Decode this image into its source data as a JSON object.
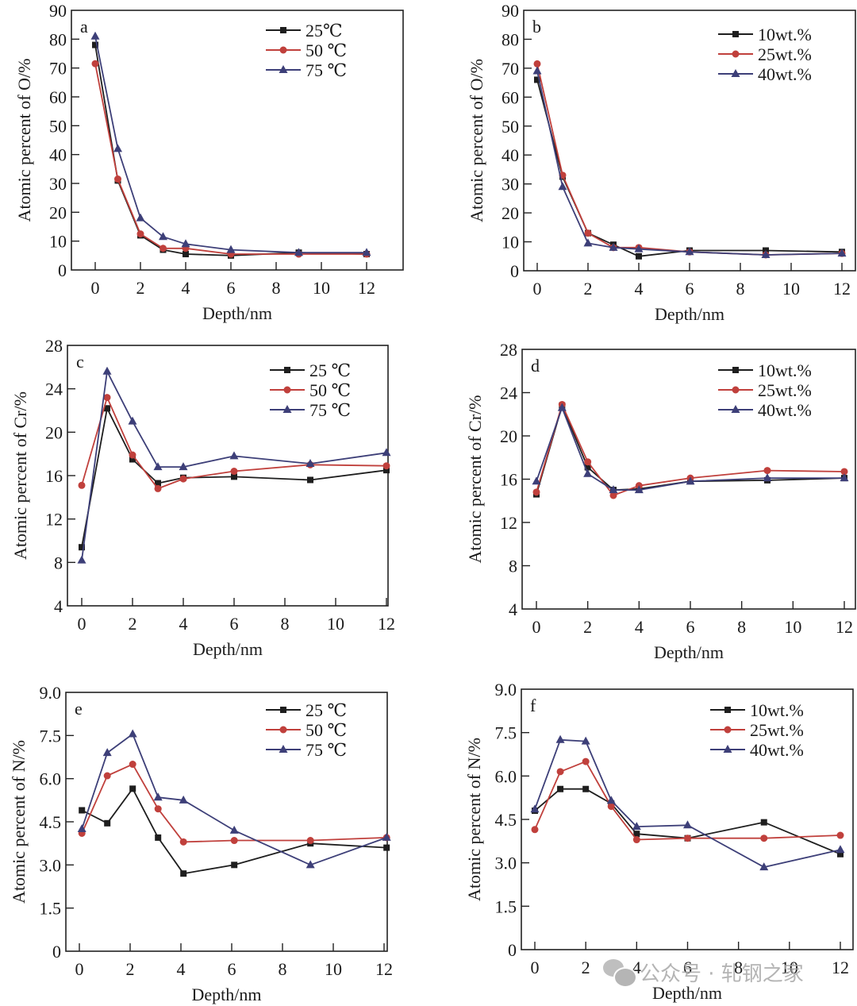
{
  "figure": {
    "watermark": "公众号 · 轧钢之家",
    "watermark_icon": "wechat-icon"
  },
  "colors": {
    "series1": "#1e1e1e",
    "series2": "#c0403c",
    "series3": "#3d3f78",
    "axis": "#222222"
  },
  "chart_data": [
    {
      "panel": "a",
      "type": "line",
      "xlabel": "Depth/nm",
      "ylabel": "Atomic percent of O/%",
      "xlim": [
        -1,
        13
      ],
      "ylim": [
        0,
        90
      ],
      "xticks": [
        0,
        2,
        4,
        6,
        8,
        10,
        12
      ],
      "yticks": [
        "0",
        "10",
        "20",
        "30",
        "40",
        "50",
        "60",
        "70",
        "80",
        "90"
      ],
      "yticks_values": [
        0,
        10,
        20,
        30,
        40,
        50,
        60,
        70,
        80,
        90
      ],
      "legend_position": "top-right",
      "x": [
        0,
        1,
        2,
        3,
        4,
        6,
        9,
        12
      ],
      "series": [
        {
          "name": "25℃",
          "marker": "square",
          "values": [
            78,
            31,
            12,
            7,
            5.5,
            5,
            6,
            5.5
          ]
        },
        {
          "name": "50 ℃",
          "marker": "circle",
          "values": [
            71.5,
            31.5,
            12.5,
            7.5,
            7.5,
            5.5,
            5.5,
            5.5
          ]
        },
        {
          "name": "75 ℃",
          "marker": "triangle",
          "values": [
            81,
            42,
            18,
            11.5,
            9,
            7,
            6,
            6
          ]
        }
      ]
    },
    {
      "panel": "b",
      "type": "line",
      "xlabel": "Depth/nm",
      "ylabel": "Atomic percent of O/%",
      "xlim": [
        -0.5,
        13
      ],
      "ylim": [
        0,
        90
      ],
      "xticks": [
        0,
        2,
        4,
        6,
        8,
        10,
        12
      ],
      "yticks": [
        "0",
        "10",
        "20",
        "30",
        "40",
        "50",
        "60",
        "70",
        "80",
        "90"
      ],
      "yticks_values": [
        0,
        10,
        20,
        30,
        40,
        50,
        60,
        70,
        80,
        90
      ],
      "legend_position": "top-right",
      "x": [
        0,
        1,
        2,
        3,
        4,
        6,
        9,
        12
      ],
      "series": [
        {
          "name": "10wt.%",
          "marker": "square",
          "values": [
            66,
            32.5,
            13,
            9,
            5,
            7,
            7,
            6.5
          ]
        },
        {
          "name": "25wt.%",
          "marker": "circle",
          "values": [
            71.5,
            33,
            13,
            8,
            8,
            6.5,
            5.5,
            6
          ]
        },
        {
          "name": "40wt.%",
          "marker": "triangle",
          "values": [
            69,
            29,
            9.5,
            8,
            7.5,
            6.5,
            5.5,
            6
          ]
        }
      ]
    },
    {
      "panel": "c",
      "type": "line",
      "xlabel": "Depth/nm",
      "ylabel": "Atomic percent of Cr/%",
      "xlim": [
        -0.5,
        13
      ],
      "ylim": [
        4,
        28
      ],
      "xticks": [
        0,
        2,
        4,
        6,
        8,
        10,
        12
      ],
      "yticks": [
        "4",
        "8",
        "12",
        "16",
        "20",
        "24",
        "28"
      ],
      "yticks_values": [
        4,
        8,
        12,
        16,
        20,
        24,
        28
      ],
      "legend_position": "top-right",
      "x": [
        0,
        1,
        2,
        3,
        4,
        6,
        9,
        12
      ],
      "series": [
        {
          "name": "25 ℃",
          "marker": "square",
          "values": [
            9.4,
            22.2,
            17.5,
            15.3,
            15.8,
            15.9,
            15.6,
            16.5
          ]
        },
        {
          "name": "50 ℃",
          "marker": "circle",
          "values": [
            15.1,
            23.2,
            17.9,
            14.8,
            15.7,
            16.4,
            17.0,
            16.9
          ]
        },
        {
          "name": "75 ℃",
          "marker": "triangle",
          "values": [
            8.2,
            25.6,
            21.0,
            16.8,
            16.8,
            17.8,
            17.1,
            18.1
          ]
        }
      ]
    },
    {
      "panel": "d",
      "type": "line",
      "xlabel": "Depth/nm",
      "ylabel": "Atomic percent of Cr/%",
      "xlim": [
        -0.5,
        13
      ],
      "ylim": [
        4,
        28
      ],
      "xticks": [
        0,
        2,
        4,
        6,
        8,
        10,
        12
      ],
      "yticks": [
        "4",
        "8",
        "12",
        "16",
        "20",
        "24",
        "28"
      ],
      "yticks_values": [
        4,
        8,
        12,
        16,
        20,
        24,
        28
      ],
      "legend_position": "top-right",
      "x": [
        0,
        1,
        2,
        3,
        4,
        6,
        9,
        12
      ],
      "series": [
        {
          "name": "10wt.%",
          "marker": "square",
          "values": [
            14.6,
            22.8,
            17.1,
            15.0,
            15.1,
            15.8,
            15.9,
            16.1
          ]
        },
        {
          "name": "25wt.%",
          "marker": "circle",
          "values": [
            14.8,
            22.9,
            17.6,
            14.5,
            15.4,
            16.1,
            16.8,
            16.7
          ]
        },
        {
          "name": "40wt.%",
          "marker": "triangle",
          "values": [
            15.8,
            22.6,
            16.5,
            15.0,
            15.0,
            15.8,
            16.1,
            16.1
          ]
        }
      ]
    },
    {
      "panel": "e",
      "type": "line",
      "xlabel": "Depth/nm",
      "ylabel": "Atomic percent of N/%",
      "xlim": [
        -0.5,
        13
      ],
      "ylim": [
        0,
        9
      ],
      "xticks": [
        0,
        2,
        4,
        6,
        8,
        10,
        12
      ],
      "yticks": [
        "0",
        "1.5",
        "3.0",
        "4.5",
        "6.0",
        "7.5",
        "9.0"
      ],
      "yticks_values": [
        0,
        1.5,
        3.0,
        4.5,
        6.0,
        7.5,
        9.0
      ],
      "legend_position": "top-right",
      "x": [
        0.1,
        1.1,
        2.1,
        3.1,
        4.1,
        6.1,
        9.1,
        12.1
      ],
      "series": [
        {
          "name": "25 ℃",
          "marker": "square",
          "values": [
            4.9,
            4.45,
            5.65,
            3.95,
            2.7,
            3.0,
            3.75,
            3.6
          ]
        },
        {
          "name": "50 ℃",
          "marker": "circle",
          "values": [
            4.1,
            6.1,
            6.5,
            4.95,
            3.8,
            3.85,
            3.85,
            3.95
          ]
        },
        {
          "name": "75 ℃",
          "marker": "triangle",
          "values": [
            4.25,
            6.9,
            7.55,
            5.35,
            5.25,
            4.2,
            3.0,
            3.95
          ]
        }
      ]
    },
    {
      "panel": "f",
      "type": "line",
      "xlabel": "Depth/nm",
      "ylabel": "Atomic percent of N/%",
      "xlim": [
        -0.5,
        13
      ],
      "ylim": [
        0,
        9
      ],
      "xticks": [
        0,
        2,
        4,
        6,
        8,
        10,
        12
      ],
      "yticks": [
        "0",
        "1.5",
        "3.0",
        "4.5",
        "6.0",
        "7.5",
        "9.0"
      ],
      "yticks_values": [
        0,
        1.5,
        3.0,
        4.5,
        6.0,
        7.5,
        9.0
      ],
      "legend_position": "top-right",
      "x": [
        0,
        1,
        2,
        3,
        4,
        6,
        9,
        12
      ],
      "series": [
        {
          "name": "10wt.%",
          "marker": "square",
          "values": [
            4.8,
            5.55,
            5.55,
            5.05,
            4.0,
            3.85,
            4.4,
            3.3
          ]
        },
        {
          "name": "25wt.%",
          "marker": "circle",
          "values": [
            4.15,
            6.15,
            6.5,
            4.95,
            3.8,
            3.85,
            3.85,
            3.95
          ]
        },
        {
          "name": "40wt.%",
          "marker": "triangle",
          "values": [
            4.85,
            7.25,
            7.2,
            5.15,
            4.25,
            4.3,
            2.85,
            3.45
          ]
        }
      ]
    }
  ]
}
